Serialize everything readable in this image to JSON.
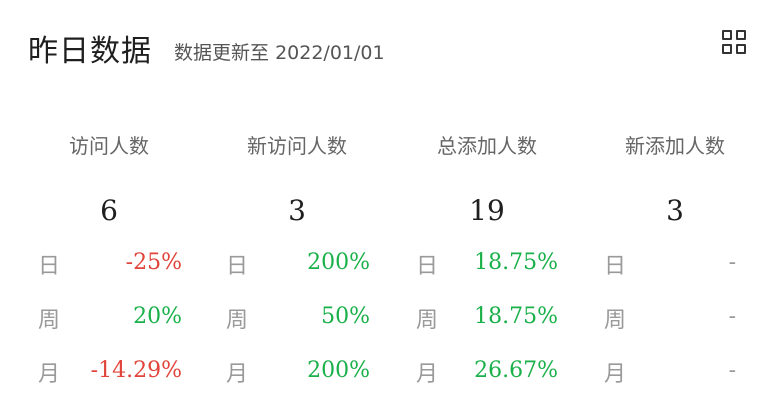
{
  "header": {
    "title": "昨日数据",
    "update_prefix": "数据更新至",
    "update_date": "2022/01/01"
  },
  "columns": [
    {
      "label": "访问人数",
      "value": "6",
      "rows": [
        {
          "period": "日",
          "change": "-25%",
          "trend": "down"
        },
        {
          "period": "周",
          "change": "20%",
          "trend": "up"
        },
        {
          "period": "月",
          "change": "-14.29%",
          "trend": "down"
        }
      ]
    },
    {
      "label": "新访问人数",
      "value": "3",
      "rows": [
        {
          "period": "日",
          "change": "200%",
          "trend": "up"
        },
        {
          "period": "周",
          "change": "50%",
          "trend": "up"
        },
        {
          "period": "月",
          "change": "200%",
          "trend": "up"
        }
      ]
    },
    {
      "label": "总添加人数",
      "value": "19",
      "rows": [
        {
          "period": "日",
          "change": "18.75%",
          "trend": "up"
        },
        {
          "period": "周",
          "change": "18.75%",
          "trend": "up"
        },
        {
          "period": "月",
          "change": "26.67%",
          "trend": "up"
        }
      ]
    },
    {
      "label": "新添加人数",
      "value": "3",
      "rows": [
        {
          "period": "日",
          "change": "-",
          "trend": "none"
        },
        {
          "period": "周",
          "change": "-",
          "trend": "none"
        },
        {
          "period": "月",
          "change": "-",
          "trend": "none"
        }
      ]
    }
  ],
  "icons": {
    "grid": "grid-view-icon"
  },
  "colors": {
    "negative": "#e0443a",
    "positive": "#1ab04a",
    "neutral": "#999999"
  }
}
